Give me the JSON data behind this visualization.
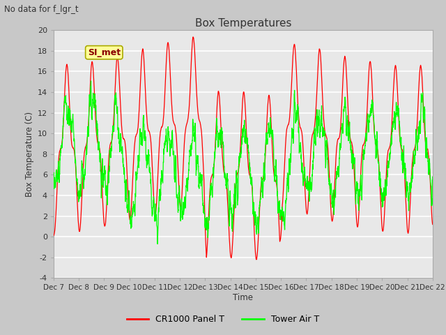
{
  "title": "Box Temperatures",
  "suptitle": "No data for f_lgr_t",
  "ylabel": "Box Temperature (C)",
  "xlabel": "Time",
  "ylim": [
    -4,
    20
  ],
  "xtick_labels": [
    "Dec 7",
    "Dec 8",
    "Dec 9",
    "Dec 10",
    "Dec 11",
    "Dec 12",
    "Dec 13",
    "Dec 14",
    "Dec 15",
    "Dec 16",
    "Dec 17",
    "Dec 18",
    "Dec 19",
    "Dec 20",
    "Dec 21",
    "Dec 22"
  ],
  "ytick_vals": [
    -4,
    -2,
    0,
    2,
    4,
    6,
    8,
    10,
    12,
    14,
    16,
    18,
    20
  ],
  "legend_labels": [
    "CR1000 Panel T",
    "Tower Air T"
  ],
  "annotation_text": "SI_met",
  "fig_facecolor": "#c8c8c8",
  "plot_bg_color": "#e8e8e8",
  "grid_color": "white",
  "panel_color": "red",
  "tower_color": "#00ff00"
}
